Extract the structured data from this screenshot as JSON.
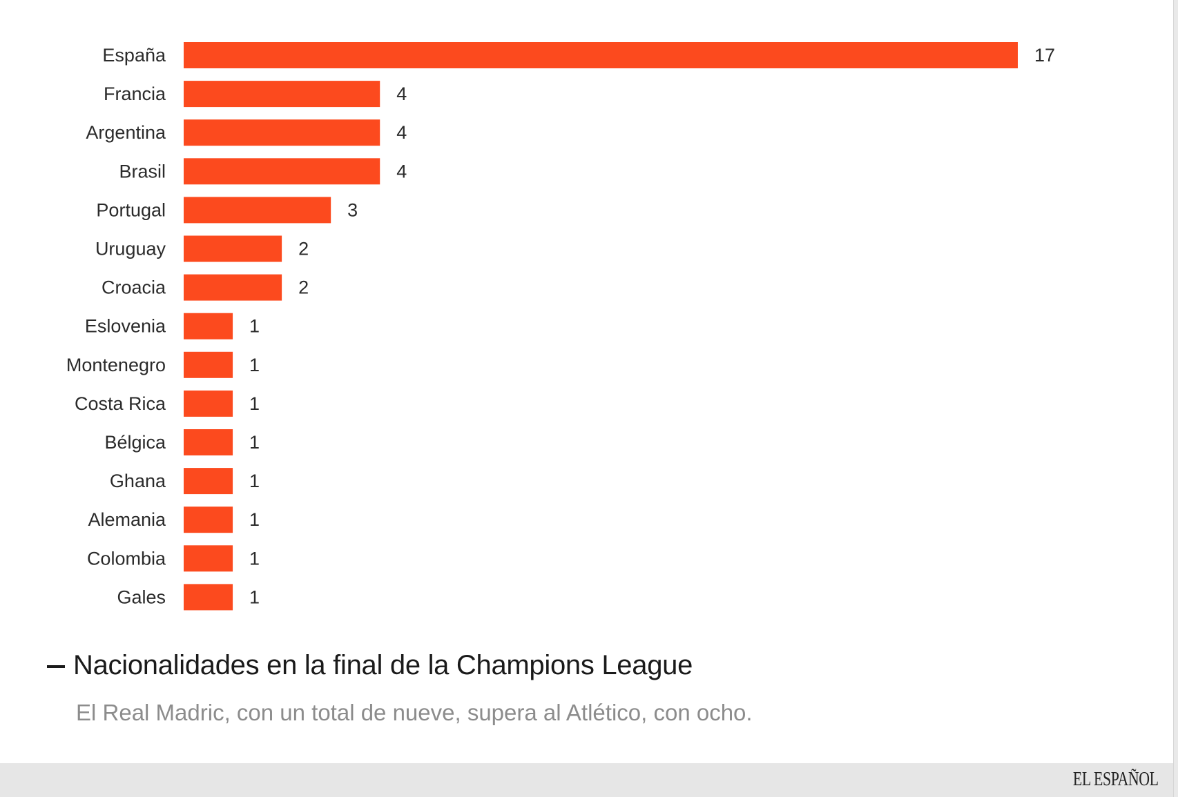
{
  "chart_data": {
    "type": "bar",
    "orientation": "horizontal",
    "title": "Nacionalidades en la final de la Champions League",
    "subtitle": "El Real Madric, con un total de nueve, supera al Atlético, con ocho.",
    "categories": [
      "España",
      "Francia",
      "Argentina",
      "Brasil",
      "Portugal",
      "Uruguay",
      "Croacia",
      "Eslovenia",
      "Montenegro",
      "Costa Rica",
      "Bélgica",
      "Ghana",
      "Alemania",
      "Colombia",
      "Gales"
    ],
    "values": [
      17,
      4,
      4,
      4,
      3,
      2,
      2,
      1,
      1,
      1,
      1,
      1,
      1,
      1,
      1
    ],
    "xlabel": "",
    "ylabel": "",
    "xlim": [
      0,
      17
    ],
    "grid": false,
    "legend": "none",
    "bar_color": "#fc4a1e"
  },
  "footer": {
    "logo_text": "EL ESPAÑOL"
  },
  "colors": {
    "bar": "#fc4a1e",
    "text": "#2b2b2b",
    "subtitle": "#8c8c8c",
    "footer_bg": "#e6e6e6"
  }
}
